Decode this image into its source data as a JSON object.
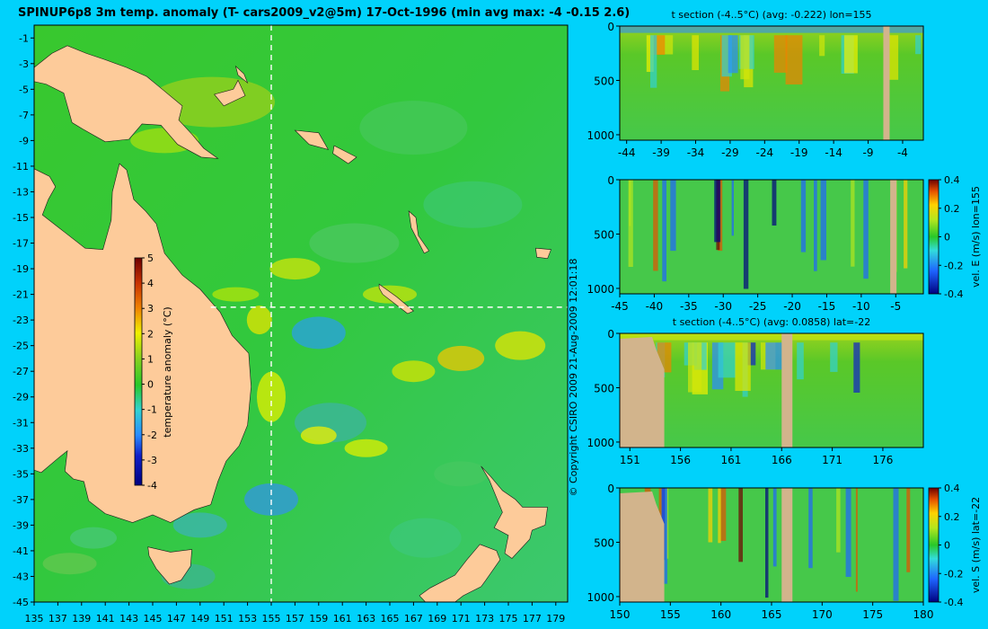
{
  "map": {
    "title": "SPINUP6p8 3m temp. anomaly (T- cars2009_v2@5m) 17-Oct-1996 (min avg max: -4 -0.15 2.6)",
    "lon_ticks": [
      "135",
      "137",
      "139",
      "141",
      "143",
      "145",
      "147",
      "149",
      "151",
      "153",
      "155",
      "157",
      "159",
      "161",
      "163",
      "165",
      "167",
      "169",
      "171",
      "173",
      "175",
      "177",
      "179"
    ],
    "lat_ticks": [
      "-1",
      "-3",
      "-5",
      "-7",
      "-9",
      "-11",
      "-13",
      "-15",
      "-17",
      "-19",
      "-21",
      "-23",
      "-25",
      "-27",
      "-29",
      "-31",
      "-33",
      "-35",
      "-37",
      "-39",
      "-41",
      "-43",
      "-45"
    ],
    "section_lon": 155,
    "section_lat": -22,
    "colorbar": {
      "label": "temperature anomaly (°C)",
      "ticks": [
        "5",
        "4",
        "3",
        "2",
        "1",
        "0",
        "-1",
        "-2",
        "-3",
        "-4"
      ]
    },
    "copyright": "© Copyright CSIRO 2009   21-Aug-2009 12:01:18",
    "colors": {
      "land": "#fdcb9a",
      "background": "#00d2fb"
    }
  },
  "panels": [
    {
      "title": "t section (-4..5°C) (avg: -0.222) lon=155",
      "x_ticks": [
        "-44",
        "-39",
        "-34",
        "-29",
        "-24",
        "-19",
        "-14",
        "-9",
        "-4"
      ],
      "y_ticks": [
        "0",
        "500",
        "1000"
      ],
      "colorbar_label": "",
      "cb_ticks": []
    },
    {
      "title": "",
      "x_ticks": [
        "-45",
        "-40",
        "-35",
        "-30",
        "-25",
        "-20",
        "-15",
        "-10",
        "-5"
      ],
      "y_ticks": [
        "0",
        "500",
        "1000"
      ],
      "colorbar_label": "vel. E (m/s) lon=155",
      "cb_ticks": [
        "0.4",
        "0.2",
        "0",
        "-0.2",
        "-0.4"
      ]
    },
    {
      "title": "t section (-4..5°C) (avg: 0.0858) lat=-22",
      "x_ticks": [
        "151",
        "156",
        "161",
        "166",
        "171",
        "176"
      ],
      "y_ticks": [
        "0",
        "500",
        "1000"
      ],
      "colorbar_label": "",
      "cb_ticks": []
    },
    {
      "title": "",
      "x_ticks": [
        "150",
        "155",
        "160",
        "165",
        "170",
        "175",
        "180"
      ],
      "y_ticks": [
        "0",
        "500",
        "1000"
      ],
      "colorbar_label": "vel. S (m/s) lat=-22",
      "cb_ticks": [
        "0.4",
        "0.2",
        "0",
        "-0.2",
        "-0.4"
      ]
    }
  ],
  "chart_data": [
    {
      "type": "heatmap",
      "title": "SPINUP6p8 3m temp. anomaly (T- cars2009_v2@5m) 17-Oct-1996 (min avg max: -4 -0.15 2.6)",
      "x": [
        135,
        137,
        139,
        141,
        143,
        145,
        147,
        149,
        151,
        153,
        155,
        157,
        159,
        161,
        163,
        165,
        167,
        169,
        171,
        173,
        175,
        177,
        179
      ],
      "y": [
        -1,
        -3,
        -5,
        -7,
        -9,
        -11,
        -13,
        -15,
        -17,
        -19,
        -21,
        -23,
        -25,
        -27,
        -29,
        -31,
        -33,
        -35,
        -37,
        -39,
        -41,
        -43,
        -45
      ],
      "xlim": [
        135,
        180
      ],
      "ylim": [
        -45,
        0
      ],
      "colorbar": {
        "label": "temperature anomaly (°C)",
        "range": [
          -4,
          5
        ]
      },
      "stats": {
        "min": -4,
        "avg": -0.15,
        "max": 2.6
      }
    },
    {
      "type": "heatmap",
      "title": "t section (-4..5°C) (avg: -0.222) lon=155",
      "x": [
        -44,
        -39,
        -34,
        -29,
        -24,
        -19,
        -14,
        -9,
        -4
      ],
      "y": [
        0,
        500,
        1000
      ],
      "xlim": [
        -45,
        -1
      ],
      "ylim": [
        1050,
        0
      ],
      "range": [
        -4,
        5
      ],
      "avg": -0.222
    },
    {
      "type": "heatmap",
      "title": "",
      "x": [
        -45,
        -40,
        -35,
        -30,
        -25,
        -20,
        -15,
        -10,
        -5
      ],
      "y": [
        0,
        500,
        1000
      ],
      "xlim": [
        -45,
        -1
      ],
      "ylim": [
        1050,
        0
      ],
      "colorbar": {
        "label": "vel. E (m/s) lon=155",
        "range": [
          -0.4,
          0.4
        ]
      }
    },
    {
      "type": "heatmap",
      "title": "t section (-4..5°C) (avg: 0.0858) lat=-22",
      "x": [
        151,
        156,
        161,
        166,
        171,
        176
      ],
      "y": [
        0,
        500,
        1000
      ],
      "xlim": [
        150,
        180
      ],
      "ylim": [
        1050,
        0
      ],
      "range": [
        -4,
        5
      ],
      "avg": 0.0858
    },
    {
      "type": "heatmap",
      "title": "",
      "x": [
        150,
        155,
        160,
        165,
        170,
        175,
        180
      ],
      "y": [
        0,
        500,
        1000
      ],
      "xlim": [
        150,
        180
      ],
      "ylim": [
        1050,
        0
      ],
      "colorbar": {
        "label": "vel. S (m/s) lat=-22",
        "range": [
          -0.4,
          0.4
        ]
      }
    }
  ]
}
